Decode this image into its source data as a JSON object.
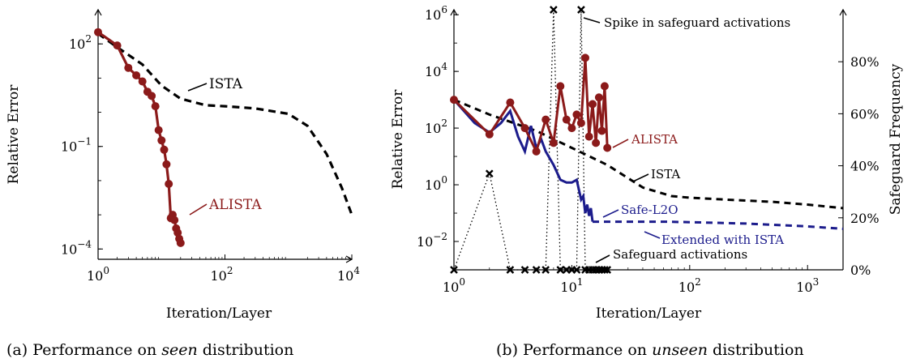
{
  "colors": {
    "ista": "#000000",
    "alista": "#8b1a1a",
    "safe_l2o": "#1c1c8c",
    "safeguard": "#000000"
  },
  "chart_data": [
    {
      "type": "line",
      "panel": "a",
      "xlabel": "Iteration/Layer",
      "ylabel": "Relative Error",
      "x_scale": "log",
      "y_scale": "log",
      "xlim": [
        1,
        10000
      ],
      "ylim": [
        5e-05,
        1000
      ],
      "x_ticks": [
        {
          "value": 1,
          "base": "10",
          "exp": "0"
        },
        {
          "value": 100,
          "base": "10",
          "exp": "2"
        },
        {
          "value": 10000,
          "base": "10",
          "exp": "4"
        }
      ],
      "y_ticks": [
        {
          "value": 0.0001,
          "base": "10",
          "exp": "−4"
        },
        {
          "value": 0.1,
          "base": "10",
          "exp": "−1"
        },
        {
          "value": 100,
          "base": "10",
          "exp": "2"
        }
      ],
      "series": [
        {
          "name": "ISTA",
          "style": "dashed",
          "x": [
            1,
            2,
            5,
            10,
            20,
            50,
            100,
            300,
            1000,
            2000,
            4000,
            7000,
            10000
          ],
          "y": [
            200,
            80,
            25,
            6,
            2.5,
            1.6,
            1.5,
            1.3,
            0.9,
            0.4,
            0.06,
            0.006,
            0.001
          ]
        },
        {
          "name": "ALISTA",
          "style": "solid-markers",
          "x": [
            1,
            2,
            3,
            4,
            5,
            6,
            7,
            8,
            9,
            10,
            11,
            12,
            13,
            14,
            15,
            16,
            17,
            18,
            19,
            20
          ],
          "y": [
            220,
            90,
            20,
            12,
            8,
            4,
            3,
            1.5,
            0.3,
            0.15,
            0.08,
            0.03,
            0.008,
            0.0008,
            0.001,
            0.0007,
            0.0004,
            0.0003,
            0.0002,
            0.00015
          ]
        }
      ],
      "annotations": [
        {
          "text": "ISTA",
          "x": 25,
          "y": 5
        },
        {
          "text": "ALISTA",
          "x": 28,
          "y": 0.0008
        }
      ],
      "caption": {
        "prefix": "(a) Performance on ",
        "em": "seen",
        "suffix": " distribution"
      }
    },
    {
      "type": "line",
      "panel": "b",
      "xlabel": "Iteration/Layer",
      "ylabel": "Relative Error",
      "ylabel_right": "Safeguard Frequency",
      "x_scale": "log",
      "y_scale": "log",
      "xlim": [
        1,
        2000
      ],
      "ylim": [
        0.001,
        1500000
      ],
      "y2lim": [
        0,
        100
      ],
      "x_ticks": [
        {
          "value": 1,
          "base": "10",
          "exp": "0"
        },
        {
          "value": 10,
          "base": "10",
          "exp": "1"
        },
        {
          "value": 100,
          "base": "10",
          "exp": "2"
        },
        {
          "value": 1000,
          "base": "10",
          "exp": "3"
        }
      ],
      "y_ticks": [
        {
          "value": 0.01,
          "base": "10",
          "exp": "−2"
        },
        {
          "value": 1,
          "base": "10",
          "exp": "0"
        },
        {
          "value": 100,
          "base": "10",
          "exp": "2"
        },
        {
          "value": 10000,
          "base": "10",
          "exp": "4"
        },
        {
          "value": 1000000,
          "base": "10",
          "exp": "6"
        }
      ],
      "y2_ticks": [
        "0%",
        "20%",
        "40%",
        "60%",
        "80%"
      ],
      "y2_tick_values": [
        0,
        20,
        40,
        60,
        80
      ],
      "series": [
        {
          "name": "ISTA",
          "style": "dashed",
          "x": [
            1,
            2,
            5,
            10,
            20,
            40,
            70,
            100,
            200,
            500,
            1000,
            2000
          ],
          "y": [
            1000,
            300,
            80,
            20,
            5,
            0.8,
            0.4,
            0.35,
            0.3,
            0.25,
            0.2,
            0.15
          ]
        },
        {
          "name": "ALISTA",
          "style": "solid-markers",
          "x": [
            1,
            2,
            3,
            4,
            5,
            6,
            7,
            8,
            9,
            10,
            11,
            12,
            13,
            14,
            15,
            16,
            17,
            18,
            19,
            20
          ],
          "y": [
            1000,
            60,
            800,
            100,
            15,
            200,
            30,
            3000,
            200,
            100,
            300,
            150,
            30000,
            50,
            700,
            30,
            1200,
            80,
            3000,
            20
          ]
        },
        {
          "name": "Safe-L2O",
          "style": "solid",
          "x": [
            1,
            1.5,
            2,
            2.5,
            3,
            3.5,
            4,
            4.5,
            5,
            5.5,
            6,
            7,
            8,
            9,
            10,
            11,
            12,
            12.5,
            13,
            13.5,
            14,
            14.5,
            15
          ],
          "y": [
            1000,
            150,
            70,
            150,
            400,
            50,
            15,
            120,
            20,
            40,
            15,
            5,
            1.5,
            1.2,
            1.2,
            1.5,
            0.3,
            0.4,
            0.1,
            0.2,
            0.08,
            0.15,
            0.05
          ]
        },
        {
          "name": "Extended with ISTA",
          "style": "dashed",
          "x": [
            15,
            30,
            60,
            100,
            300,
            1000,
            2000
          ],
          "y": [
            0.05,
            0.05,
            0.05,
            0.048,
            0.043,
            0.034,
            0.028
          ]
        },
        {
          "name": "Safeguard activations",
          "style": "dotted-markers",
          "axis": "right",
          "x": [
            1,
            2,
            3,
            4,
            5,
            6,
            7,
            8,
            9,
            10,
            11,
            12,
            13,
            14,
            15,
            16,
            17,
            18,
            19,
            20
          ],
          "y": [
            0,
            37,
            0,
            0,
            0,
            0,
            100,
            0,
            0,
            0,
            0,
            100,
            0,
            0,
            0,
            0,
            0,
            0,
            0,
            0
          ]
        }
      ],
      "annotations": [
        {
          "text": "Spike in safeguard activations"
        },
        {
          "text": "ALISTA"
        },
        {
          "text": "ISTA"
        },
        {
          "text": "Safe-L2O"
        },
        {
          "text": "Extended with ISTA"
        },
        {
          "text": "Safeguard activations"
        }
      ],
      "caption": {
        "prefix": "(b) Performance on ",
        "em": "unseen",
        "suffix": " distribution"
      }
    }
  ]
}
